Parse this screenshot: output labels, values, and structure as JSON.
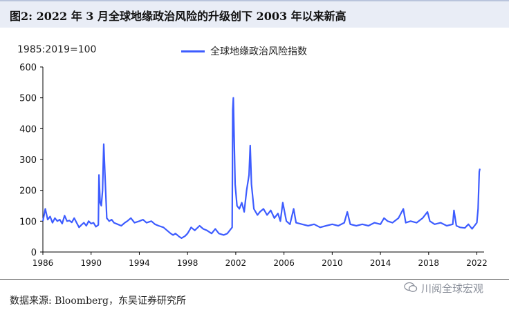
{
  "header": {
    "title": "图2:  2022 年 3 月全球地缘政治风险的升级创下 2003 年以来新高"
  },
  "footer": {
    "source": "数据来源:  Bloomberg，东吴证券研究所",
    "watermark": "川阅全球宏观"
  },
  "colors": {
    "series": "#3d5cff",
    "axis": "#000000"
  },
  "chart_data": {
    "type": "line",
    "unit_label": "1985:2019=100",
    "ylim": [
      0,
      600
    ],
    "yticks": [
      0,
      100,
      200,
      300,
      400,
      500,
      600
    ],
    "xlim": [
      1986,
      2022.6
    ],
    "xticks": [
      1986,
      1990,
      1994,
      1998,
      2002,
      2006,
      2010,
      2014,
      2018,
      2022
    ],
    "legend_placement": "top",
    "grid": false,
    "series": [
      {
        "name": "全球地缘政治风险指数",
        "points": [
          [
            1986.0,
            100
          ],
          [
            1986.2,
            140
          ],
          [
            1986.4,
            105
          ],
          [
            1986.6,
            115
          ],
          [
            1986.8,
            95
          ],
          [
            1987.0,
            110
          ],
          [
            1987.2,
            100
          ],
          [
            1987.4,
            105
          ],
          [
            1987.6,
            92
          ],
          [
            1987.8,
            118
          ],
          [
            1988.0,
            100
          ],
          [
            1988.2,
            102
          ],
          [
            1988.4,
            96
          ],
          [
            1988.6,
            110
          ],
          [
            1988.8,
            95
          ],
          [
            1989.0,
            80
          ],
          [
            1989.2,
            88
          ],
          [
            1989.4,
            95
          ],
          [
            1989.6,
            85
          ],
          [
            1989.8,
            100
          ],
          [
            1990.0,
            92
          ],
          [
            1990.2,
            95
          ],
          [
            1990.4,
            82
          ],
          [
            1990.6,
            88
          ],
          [
            1990.65,
            250
          ],
          [
            1990.75,
            160
          ],
          [
            1990.85,
            150
          ],
          [
            1990.95,
            200
          ],
          [
            1991.05,
            350
          ],
          [
            1991.15,
            250
          ],
          [
            1991.3,
            110
          ],
          [
            1991.5,
            100
          ],
          [
            1991.7,
            105
          ],
          [
            1991.9,
            95
          ],
          [
            1992.2,
            90
          ],
          [
            1992.5,
            85
          ],
          [
            1992.8,
            95
          ],
          [
            1993.0,
            100
          ],
          [
            1993.3,
            110
          ],
          [
            1993.6,
            95
          ],
          [
            1994.0,
            100
          ],
          [
            1994.3,
            105
          ],
          [
            1994.6,
            95
          ],
          [
            1995.0,
            100
          ],
          [
            1995.3,
            90
          ],
          [
            1995.6,
            85
          ],
          [
            1996.0,
            80
          ],
          [
            1996.3,
            70
          ],
          [
            1996.6,
            60
          ],
          [
            1996.8,
            55
          ],
          [
            1997.0,
            60
          ],
          [
            1997.3,
            50
          ],
          [
            1997.5,
            45
          ],
          [
            1997.8,
            52
          ],
          [
            1998.0,
            60
          ],
          [
            1998.3,
            80
          ],
          [
            1998.6,
            70
          ],
          [
            1999.0,
            85
          ],
          [
            1999.3,
            75
          ],
          [
            1999.6,
            70
          ],
          [
            2000.0,
            60
          ],
          [
            2000.3,
            75
          ],
          [
            2000.6,
            60
          ],
          [
            2001.0,
            55
          ],
          [
            2001.3,
            60
          ],
          [
            2001.5,
            70
          ],
          [
            2001.7,
            80
          ],
          [
            2001.75,
            460
          ],
          [
            2001.8,
            500
          ],
          [
            2001.85,
            400
          ],
          [
            2001.95,
            220
          ],
          [
            2002.1,
            150
          ],
          [
            2002.3,
            140
          ],
          [
            2002.5,
            160
          ],
          [
            2002.7,
            130
          ],
          [
            2002.9,
            200
          ],
          [
            2003.1,
            250
          ],
          [
            2003.2,
            345
          ],
          [
            2003.3,
            220
          ],
          [
            2003.5,
            140
          ],
          [
            2003.8,
            120
          ],
          [
            2004.0,
            130
          ],
          [
            2004.3,
            140
          ],
          [
            2004.6,
            120
          ],
          [
            2004.9,
            135
          ],
          [
            2005.2,
            110
          ],
          [
            2005.5,
            125
          ],
          [
            2005.7,
            100
          ],
          [
            2005.9,
            160
          ],
          [
            2006.2,
            100
          ],
          [
            2006.5,
            90
          ],
          [
            2006.8,
            140
          ],
          [
            2007.0,
            95
          ],
          [
            2007.5,
            90
          ],
          [
            2008.0,
            85
          ],
          [
            2008.5,
            90
          ],
          [
            2009.0,
            80
          ],
          [
            2009.5,
            85
          ],
          [
            2010.0,
            90
          ],
          [
            2010.5,
            85
          ],
          [
            2011.0,
            95
          ],
          [
            2011.25,
            130
          ],
          [
            2011.5,
            90
          ],
          [
            2012.0,
            85
          ],
          [
            2012.5,
            90
          ],
          [
            2013.0,
            85
          ],
          [
            2013.5,
            95
          ],
          [
            2014.0,
            90
          ],
          [
            2014.3,
            110
          ],
          [
            2014.6,
            100
          ],
          [
            2015.0,
            95
          ],
          [
            2015.5,
            110
          ],
          [
            2015.9,
            140
          ],
          [
            2016.1,
            95
          ],
          [
            2016.5,
            100
          ],
          [
            2017.0,
            95
          ],
          [
            2017.5,
            110
          ],
          [
            2017.9,
            130
          ],
          [
            2018.1,
            100
          ],
          [
            2018.5,
            90
          ],
          [
            2019.0,
            95
          ],
          [
            2019.5,
            85
          ],
          [
            2020.0,
            90
          ],
          [
            2020.1,
            135
          ],
          [
            2020.3,
            85
          ],
          [
            2020.6,
            80
          ],
          [
            2021.0,
            78
          ],
          [
            2021.3,
            90
          ],
          [
            2021.6,
            75
          ],
          [
            2021.8,
            85
          ],
          [
            2022.0,
            95
          ],
          [
            2022.1,
            140
          ],
          [
            2022.2,
            260
          ],
          [
            2022.25,
            270
          ]
        ]
      }
    ]
  }
}
